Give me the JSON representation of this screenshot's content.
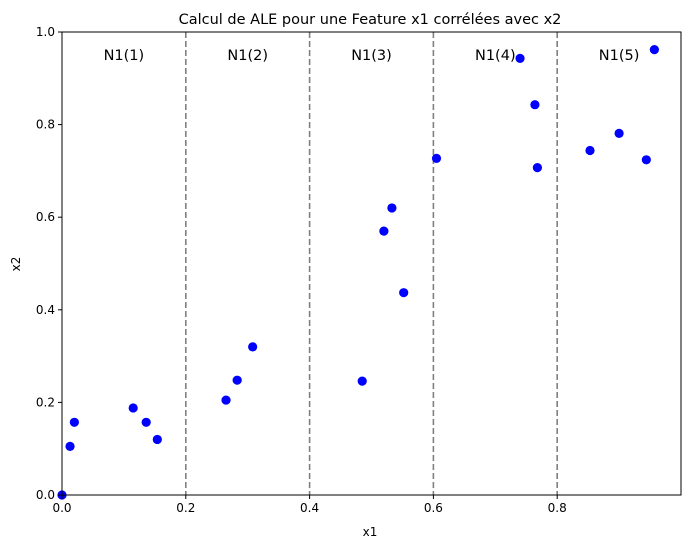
{
  "chart_data": {
    "type": "scatter",
    "title": "Calcul de ALE pour une Feature x1 corrélées avec x2",
    "xlabel": "x1",
    "ylabel": "x2",
    "xlim": [
      0,
      1.0
    ],
    "ylim": [
      0,
      1.0
    ],
    "grid": false,
    "marker_color": "#0000ff",
    "divider_color": "#808080",
    "x_ticks": [
      0.0,
      0.2,
      0.4,
      0.6,
      0.8
    ],
    "x_tick_labels": [
      "0.0",
      "0.2",
      "0.4",
      "0.6",
      "0.8"
    ],
    "y_ticks": [
      0.0,
      0.2,
      0.4,
      0.6,
      0.8,
      1.0
    ],
    "y_tick_labels": [
      "0.0",
      "0.2",
      "0.4",
      "0.6",
      "0.8",
      "1.0"
    ],
    "dividers": [
      0.2,
      0.4,
      0.6,
      0.8
    ],
    "regions": [
      {
        "label": "N1(1)",
        "x": 0.1
      },
      {
        "label": "N1(2)",
        "x": 0.3
      },
      {
        "label": "N1(3)",
        "x": 0.5
      },
      {
        "label": "N1(4)",
        "x": 0.7
      },
      {
        "label": "N1(5)",
        "x": 0.9
      }
    ],
    "region_label_y": 0.95,
    "points": [
      {
        "x": 0.0,
        "y": 0.0
      },
      {
        "x": 0.013,
        "y": 0.105
      },
      {
        "x": 0.02,
        "y": 0.157
      },
      {
        "x": 0.115,
        "y": 0.188
      },
      {
        "x": 0.136,
        "y": 0.157
      },
      {
        "x": 0.154,
        "y": 0.12
      },
      {
        "x": 0.265,
        "y": 0.205
      },
      {
        "x": 0.283,
        "y": 0.248
      },
      {
        "x": 0.308,
        "y": 0.32
      },
      {
        "x": 0.485,
        "y": 0.246
      },
      {
        "x": 0.52,
        "y": 0.57
      },
      {
        "x": 0.533,
        "y": 0.62
      },
      {
        "x": 0.552,
        "y": 0.437
      },
      {
        "x": 0.605,
        "y": 0.727
      },
      {
        "x": 0.74,
        "y": 0.943
      },
      {
        "x": 0.764,
        "y": 0.843
      },
      {
        "x": 0.768,
        "y": 0.707
      },
      {
        "x": 0.853,
        "y": 0.744
      },
      {
        "x": 0.9,
        "y": 0.781
      },
      {
        "x": 0.944,
        "y": 0.724
      },
      {
        "x": 0.957,
        "y": 0.962
      }
    ]
  }
}
